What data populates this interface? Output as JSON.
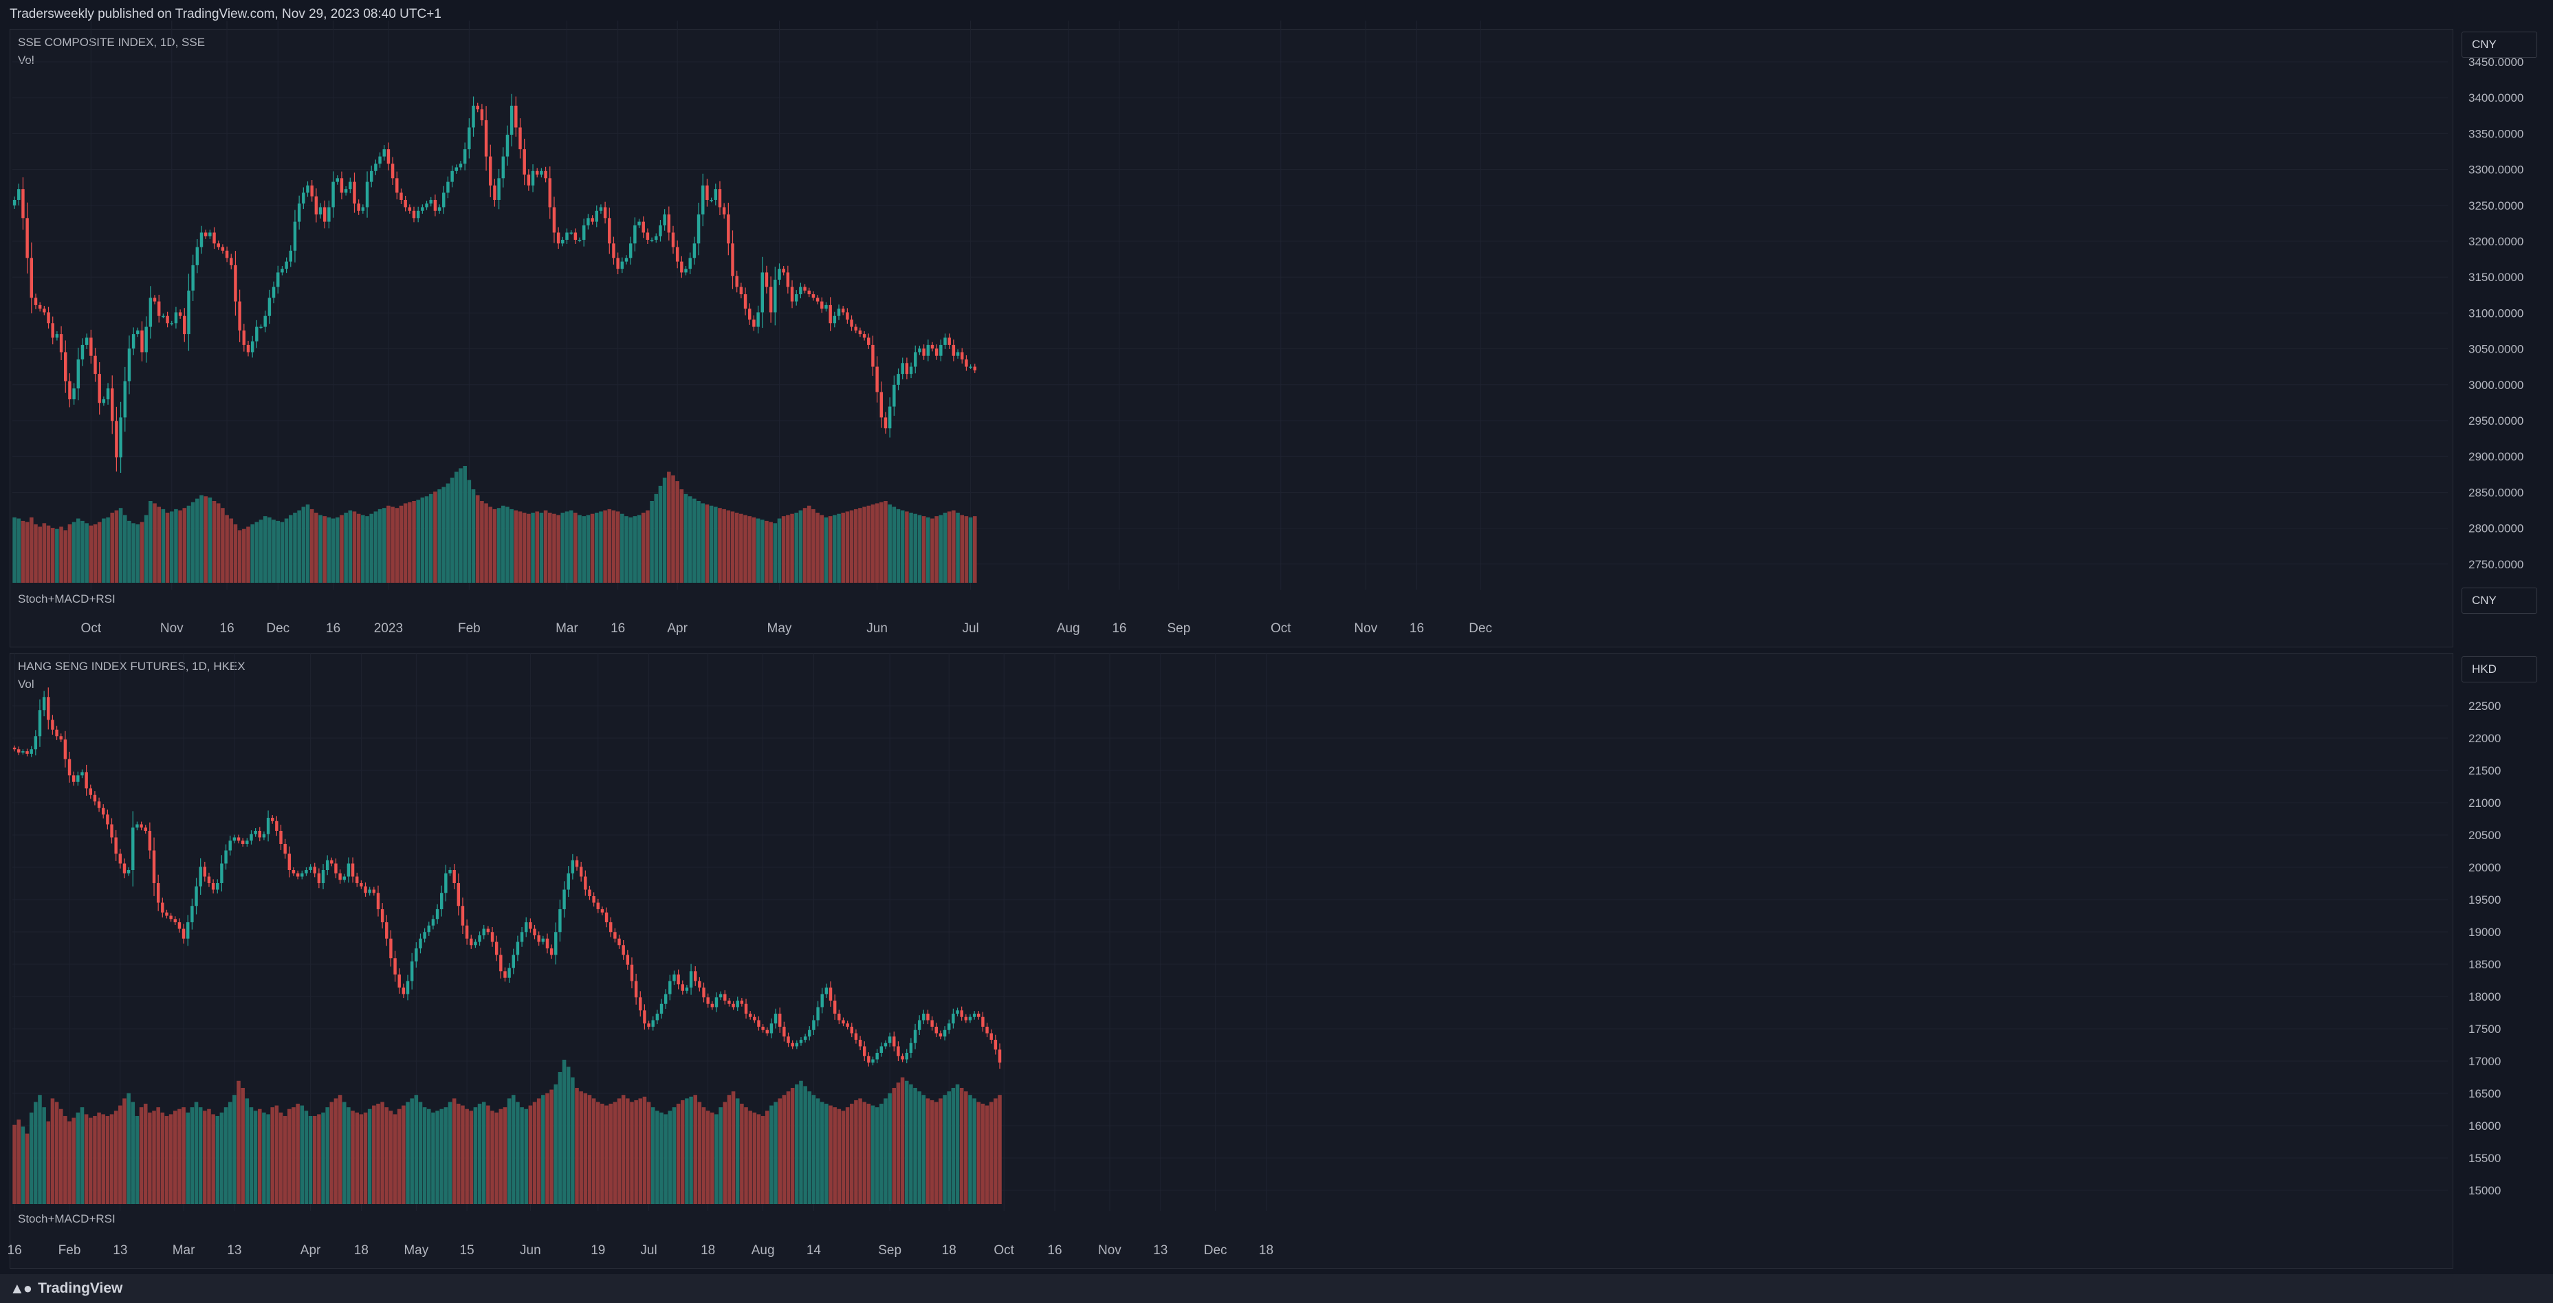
{
  "header": {
    "published": "Tradersweekly published on TradingView.com, Nov 29, 2023 08:40 UTC+1"
  },
  "footer": {
    "brand": "TradingView",
    "logo_icon": "tradingview-logo-icon"
  },
  "colors": {
    "up": "#26a69a",
    "down": "#ef5350",
    "vol_up": "#1f6f69",
    "vol_down": "#8f3a3a",
    "grid": "#1f2330",
    "bg": "#131722"
  },
  "chart_data": [
    {
      "type": "candlestick",
      "title": "SSE COMPOSITE INDEX, 1D, SSE",
      "volume_label": "Vol",
      "indicator_label": "Stoch+MACD+RSI",
      "currency": "CNY",
      "currency_lower": "CNY",
      "y_tick_labels": [
        "3450.0000",
        "3400.0000",
        "3350.0000",
        "3300.0000",
        "3250.0000",
        "3200.0000",
        "3150.0000",
        "3100.0000",
        "3050.0000",
        "3000.0000",
        "2950.0000",
        "2900.0000",
        "2850.0000",
        "2800.0000",
        "2750.0000"
      ],
      "ylim": [
        2730,
        3460
      ],
      "x_tick_labels": [
        "Oct",
        "Nov",
        "16",
        "Dec",
        "16",
        "2023",
        "Feb",
        "Mar",
        "16",
        "Apr",
        "May",
        "Jun",
        "Jul",
        "Aug",
        "16",
        "Sep",
        "Oct",
        "Nov",
        "16",
        "Dec"
      ],
      "x_tick_index": [
        18,
        37,
        50,
        62,
        75,
        88,
        107,
        130,
        142,
        156,
        180,
        203,
        225,
        248,
        260,
        274,
        298,
        318,
        330,
        345
      ],
      "closes": [
        3260,
        3275,
        3235,
        3180,
        3125,
        3115,
        3110,
        3105,
        3090,
        3070,
        3075,
        3050,
        3010,
        2985,
        3000,
        3040,
        3060,
        3070,
        3045,
        3020,
        2980,
        2985,
        3000,
        2955,
        2905,
        2960,
        3010,
        3055,
        3075,
        3080,
        3050,
        3085,
        3125,
        3120,
        3100,
        3100,
        3090,
        3090,
        3105,
        3100,
        3075,
        3135,
        3170,
        3195,
        3215,
        3210,
        3215,
        3200,
        3195,
        3190,
        3180,
        3170,
        3120,
        3080,
        3060,
        3050,
        3065,
        3085,
        3085,
        3100,
        3125,
        3140,
        3160,
        3165,
        3175,
        3190,
        3230,
        3255,
        3270,
        3280,
        3265,
        3240,
        3250,
        3230,
        3250,
        3285,
        3290,
        3270,
        3275,
        3285,
        3255,
        3245,
        3250,
        3285,
        3300,
        3310,
        3320,
        3330,
        3310,
        3290,
        3270,
        3260,
        3250,
        3245,
        3235,
        3245,
        3250,
        3255,
        3260,
        3245,
        3250,
        3270,
        3285,
        3300,
        3305,
        3310,
        3330,
        3360,
        3390,
        3385,
        3370,
        3320,
        3280,
        3260,
        3290,
        3320,
        3350,
        3390,
        3360,
        3330,
        3295,
        3280,
        3300,
        3295,
        3300,
        3290,
        3250,
        3215,
        3200,
        3205,
        3215,
        3215,
        3205,
        3205,
        3225,
        3235,
        3230,
        3245,
        3250,
        3235,
        3200,
        3180,
        3165,
        3175,
        3180,
        3200,
        3225,
        3230,
        3215,
        3205,
        3205,
        3210,
        3225,
        3240,
        3215,
        3195,
        3175,
        3160,
        3165,
        3180,
        3200,
        3240,
        3280,
        3260,
        3260,
        3275,
        3250,
        3240,
        3200,
        3155,
        3140,
        3130,
        3110,
        3095,
        3085,
        3105,
        3160,
        3140,
        3105,
        3150,
        3165,
        3160,
        3140,
        3120,
        3130,
        3140,
        3135,
        3130,
        3125,
        3120,
        3110,
        3115,
        3090,
        3100,
        3110,
        3105,
        3095,
        3085,
        3080,
        3075,
        3070,
        3060,
        3030,
        2995,
        2960,
        2945,
        2975,
        3005,
        3020,
        3035,
        3020,
        3030,
        3050,
        3055,
        3045,
        3060,
        3055,
        3045,
        3060,
        3070,
        3060,
        3045,
        3050,
        3040,
        3030,
        3030,
        3025
      ],
      "volumes": [
        56,
        55,
        53,
        52,
        56,
        50,
        48,
        51,
        49,
        47,
        46,
        48,
        45,
        50,
        52,
        55,
        53,
        51,
        49,
        50,
        52,
        55,
        56,
        60,
        62,
        64,
        58,
        53,
        51,
        50,
        52,
        58,
        70,
        68,
        65,
        63,
        60,
        61,
        63,
        62,
        64,
        66,
        69,
        72,
        75,
        74,
        73,
        70,
        68,
        64,
        58,
        55,
        50,
        45,
        46,
        48,
        50,
        52,
        54,
        57,
        56,
        54,
        53,
        52,
        55,
        58,
        60,
        62,
        65,
        67,
        63,
        60,
        58,
        57,
        56,
        55,
        56,
        58,
        60,
        62,
        61,
        59,
        58,
        57,
        59,
        61,
        63,
        64,
        66,
        65,
        64,
        66,
        68,
        69,
        70,
        71,
        73,
        74,
        76,
        78,
        80,
        82,
        85,
        90,
        95,
        98,
        100,
        88,
        80,
        75,
        70,
        68,
        65,
        63,
        64,
        66,
        65,
        63,
        62,
        61,
        60,
        59,
        60,
        61,
        60,
        62,
        60,
        59,
        58,
        60,
        61,
        62,
        60,
        58,
        57,
        58,
        59,
        60,
        61,
        62,
        63,
        62,
        61,
        59,
        57,
        56,
        57,
        58,
        60,
        62,
        70,
        76,
        83,
        90,
        95,
        92,
        87,
        80,
        76,
        74,
        72,
        70,
        68,
        67,
        66,
        65,
        64,
        63,
        62,
        61,
        60,
        59,
        58,
        57,
        56,
        55,
        54,
        53,
        52,
        51,
        55,
        57,
        58,
        59,
        60,
        62,
        64,
        66,
        63,
        60,
        58,
        56,
        57,
        58,
        59,
        60,
        61,
        62,
        63,
        64,
        65,
        66,
        67,
        68,
        69,
        70,
        67,
        65,
        63,
        62,
        61,
        60,
        59,
        58,
        57,
        56,
        55,
        57,
        58,
        60,
        61,
        62,
        60,
        58,
        57,
        56,
        57,
        58,
        59,
        60,
        61,
        60,
        59,
        58,
        57,
        56
      ]
    },
    {
      "type": "candlestick",
      "title": "HANG SENG INDEX FUTURES, 1D, HKEX",
      "volume_label": "Vol",
      "indicator_label": "Stoch+MACD+RSI",
      "currency": "HKD",
      "y_tick_labels": [
        "22500",
        "22000",
        "21500",
        "21000",
        "20500",
        "20000",
        "19500",
        "19000",
        "18500",
        "18000",
        "17500",
        "17000",
        "16500",
        "16000",
        "15500",
        "15000"
      ],
      "ylim": [
        14800,
        22800
      ],
      "x_tick_labels": [
        "16",
        "Feb",
        "13",
        "Mar",
        "13",
        "Apr",
        "18",
        "May",
        "15",
        "Jun",
        "19",
        "Jul",
        "18",
        "Aug",
        "14",
        "Sep",
        "18",
        "Oct",
        "16",
        "Nov",
        "13",
        "Dec",
        "18"
      ],
      "x_tick_index": [
        0,
        13,
        25,
        40,
        52,
        70,
        82,
        95,
        107,
        122,
        138,
        150,
        164,
        177,
        189,
        207,
        221,
        234,
        246,
        259,
        271,
        284,
        296
      ],
      "closes": [
        21850,
        21800,
        21820,
        21780,
        21850,
        22050,
        22450,
        22650,
        22300,
        22150,
        22050,
        22000,
        21700,
        21450,
        21350,
        21450,
        21500,
        21250,
        21150,
        21050,
        20950,
        20850,
        20700,
        20500,
        20250,
        20100,
        19950,
        20000,
        20650,
        20700,
        20650,
        20600,
        20300,
        19800,
        19500,
        19350,
        19300,
        19250,
        19200,
        19100,
        18950,
        19200,
        19450,
        19750,
        20050,
        19900,
        19800,
        19700,
        19800,
        20100,
        20300,
        20450,
        20500,
        20450,
        20400,
        20450,
        20550,
        20600,
        20500,
        20550,
        20800,
        20750,
        20600,
        20400,
        20250,
        20000,
        19950,
        19900,
        19950,
        20000,
        20050,
        19950,
        19800,
        20000,
        20150,
        20100,
        19950,
        19850,
        19900,
        20100,
        19900,
        19800,
        19750,
        19650,
        19700,
        19650,
        19400,
        19200,
        18950,
        18650,
        18400,
        18200,
        18100,
        18300,
        18600,
        18800,
        18950,
        19050,
        19150,
        19250,
        19400,
        19650,
        19950,
        20000,
        19800,
        19450,
        19150,
        18950,
        18850,
        18900,
        19000,
        19100,
        19050,
        18900,
        18700,
        18450,
        18350,
        18500,
        18700,
        18900,
        19050,
        19200,
        19100,
        19000,
        18900,
        18950,
        18800,
        18700,
        19050,
        19400,
        19700,
        19950,
        20150,
        20050,
        19900,
        19700,
        19600,
        19500,
        19400,
        19350,
        19200,
        19050,
        18950,
        18850,
        18700,
        18550,
        18300,
        18050,
        17850,
        17650,
        17600,
        17700,
        17800,
        17950,
        18100,
        18300,
        18400,
        18250,
        18150,
        18200,
        18450,
        18300,
        18200,
        18050,
        17950,
        17900,
        18050,
        18100,
        18000,
        17950,
        17900,
        18000,
        17950,
        17800,
        17750,
        17700,
        17600,
        17550,
        17500,
        17650,
        17800,
        17600,
        17450,
        17350,
        17300,
        17350,
        17400,
        17450,
        17550,
        17700,
        17900,
        18100,
        18200,
        18000,
        17800,
        17700,
        17650,
        17600,
        17500,
        17400,
        17300,
        17150,
        17050,
        17100,
        17200,
        17300,
        17350,
        17450,
        17300,
        17150,
        17100,
        17200,
        17350,
        17550,
        17700,
        17800,
        17700,
        17600,
        17500,
        17450,
        17550,
        17650,
        17800,
        17850,
        17750,
        17700,
        17750,
        17800,
        17750,
        17600,
        17500,
        17400,
        17250,
        17050
      ],
      "volumes": [
        45,
        48,
        44,
        40,
        52,
        58,
        62,
        55,
        47,
        60,
        58,
        54,
        50,
        47,
        49,
        52,
        55,
        51,
        49,
        50,
        52,
        51,
        50,
        51,
        53,
        56,
        60,
        63,
        58,
        50,
        55,
        57,
        52,
        53,
        55,
        52,
        50,
        51,
        53,
        54,
        55,
        52,
        55,
        58,
        55,
        53,
        54,
        51,
        50,
        52,
        55,
        58,
        62,
        70,
        66,
        60,
        55,
        53,
        54,
        52,
        51,
        55,
        56,
        52,
        50,
        54,
        55,
        57,
        56,
        53,
        50,
        50,
        51,
        52,
        55,
        58,
        60,
        62,
        58,
        55,
        53,
        52,
        51,
        52,
        54,
        56,
        57,
        58,
        55,
        53,
        51,
        54,
        56,
        58,
        60,
        62,
        58,
        55,
        54,
        52,
        53,
        54,
        55,
        58,
        60,
        57,
        56,
        54,
        53,
        55,
        57,
        58,
        56,
        53,
        52,
        54,
        55,
        60,
        62,
        58,
        55,
        54,
        56,
        58,
        60,
        62,
        63,
        65,
        68,
        75,
        82,
        78,
        72,
        66,
        64,
        63,
        62,
        60,
        58,
        57,
        56,
        57,
        58,
        60,
        62,
        60,
        58,
        59,
        60,
        61,
        58,
        55,
        53,
        52,
        51,
        53,
        55,
        57,
        59,
        60,
        61,
        62,
        58,
        55,
        53,
        52,
        51,
        55,
        58,
        62,
        64,
        60,
        57,
        55,
        53,
        52,
        51,
        50,
        53,
        56,
        58,
        60,
        62,
        64,
        66,
        68,
        70,
        67,
        64,
        62,
        60,
        58,
        57,
        56,
        55,
        54,
        53,
        55,
        57,
        59,
        60,
        58,
        57,
        56,
        55,
        57,
        60,
        63,
        66,
        69,
        72,
        70,
        68,
        66,
        64,
        62,
        60,
        59,
        58,
        60,
        62,
        64,
        66,
        68,
        66,
        64,
        62,
        60,
        58,
        57,
        56,
        58,
        60,
        62,
        64,
        61,
        58
      ]
    }
  ]
}
